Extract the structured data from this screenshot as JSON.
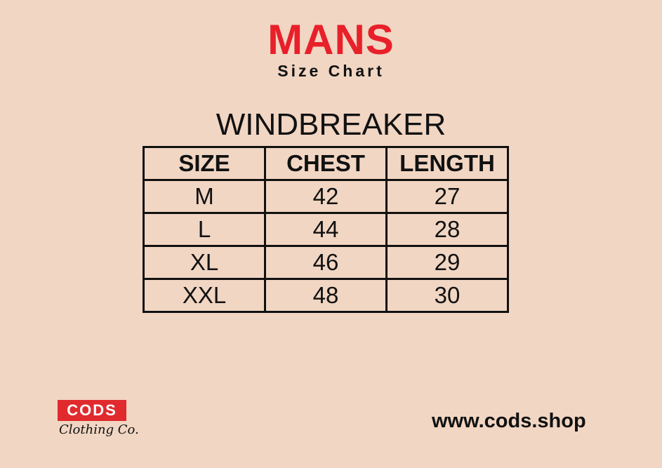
{
  "header": {
    "title": "MANS",
    "subtitle": "Size Chart"
  },
  "product": "WINDBREAKER",
  "table": {
    "headers": [
      "SIZE",
      "CHEST",
      "LENGTH"
    ],
    "rows": [
      [
        "M",
        "42",
        "27"
      ],
      [
        "L",
        "44",
        "28"
      ],
      [
        "XL",
        "46",
        "29"
      ],
      [
        "XXL",
        "48",
        "30"
      ]
    ]
  },
  "brand": {
    "logo_text": "CODS",
    "tagline": "Clothing Co.",
    "website": "www.cods.shop"
  },
  "colors": {
    "accent": "#e8202a",
    "background": "#f1d6c3"
  }
}
